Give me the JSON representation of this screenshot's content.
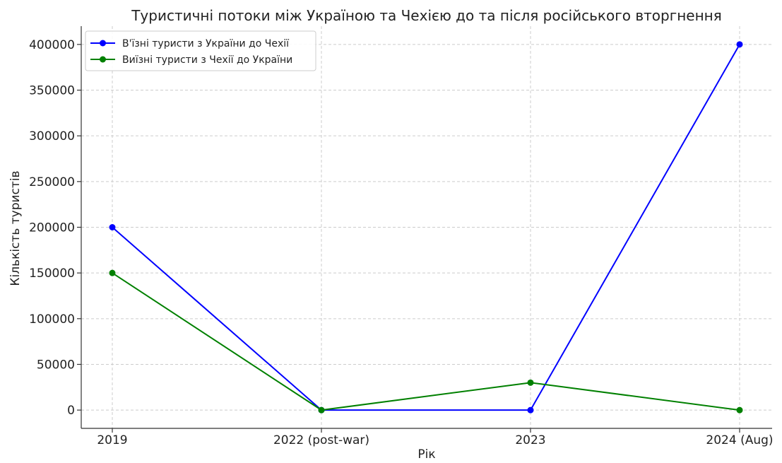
{
  "chart_data": {
    "type": "line",
    "title": "Туристичні потоки між Україною та Чехією до та після російського вторгнення",
    "xlabel": "Рік",
    "ylabel": "Кількість туристів",
    "categories": [
      "2019",
      "2022 (post-war)",
      "2023",
      "2024 (Aug)"
    ],
    "ylim": [
      -20000,
      420000
    ],
    "yticks": [
      0,
      50000,
      100000,
      150000,
      200000,
      250000,
      300000,
      350000,
      400000
    ],
    "grid": true,
    "legend_position": "top-left",
    "series": [
      {
        "name": "В'їзні туристи з України до Чехії",
        "color": "#0000ff",
        "values": [
          200000,
          0,
          0,
          400000
        ]
      },
      {
        "name": "Виїзні туристи з Чехії до України",
        "color": "#008000",
        "values": [
          150000,
          0,
          30000,
          0
        ]
      }
    ]
  }
}
